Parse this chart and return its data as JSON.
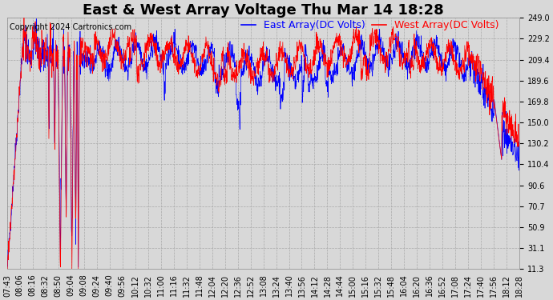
{
  "title": "East & West Array Voltage Thu Mar 14 18:28",
  "copyright": "Copyright 2024 Cartronics.com",
  "legend_east": "East Array(DC Volts)",
  "legend_west": "West Array(DC Volts)",
  "color_east": "#0000ff",
  "color_west": "#ff0000",
  "bg_color": "#d8d8d8",
  "plot_bg_color": "#d8d8d8",
  "grid_color": "#aaaaaa",
  "ymin": 11.3,
  "ymax": 249.0,
  "yticks": [
    249.0,
    229.2,
    209.4,
    189.6,
    169.8,
    150.0,
    130.2,
    110.4,
    90.6,
    70.7,
    50.9,
    31.1,
    11.3
  ],
  "xtick_labels": [
    "07:43",
    "08:06",
    "08:16",
    "08:32",
    "08:50",
    "09:04",
    "09:08",
    "09:24",
    "09:40",
    "09:56",
    "10:12",
    "10:32",
    "11:00",
    "11:16",
    "11:32",
    "11:48",
    "12:04",
    "12:20",
    "12:36",
    "12:52",
    "13:08",
    "13:24",
    "13:40",
    "13:56",
    "14:12",
    "14:28",
    "14:44",
    "15:00",
    "15:16",
    "15:32",
    "15:48",
    "16:04",
    "16:20",
    "16:36",
    "16:52",
    "17:08",
    "17:24",
    "17:40",
    "17:56",
    "18:12",
    "18:28"
  ],
  "title_fontsize": 13,
  "legend_fontsize": 9,
  "tick_fontsize": 7,
  "copyright_fontsize": 7,
  "n_points": 2000
}
